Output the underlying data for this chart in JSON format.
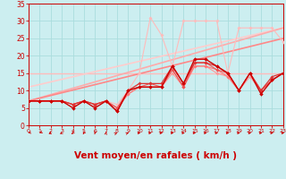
{
  "xlabel": "Vent moyen/en rafales ( km/h )",
  "xlim": [
    0,
    23
  ],
  "ylim": [
    0,
    35
  ],
  "yticks": [
    0,
    5,
    10,
    15,
    20,
    25,
    30,
    35
  ],
  "xticks": [
    0,
    1,
    2,
    3,
    4,
    5,
    6,
    7,
    8,
    9,
    10,
    11,
    12,
    13,
    14,
    15,
    16,
    17,
    18,
    19,
    20,
    21,
    22,
    23
  ],
  "bg_color": "#cceef0",
  "grid_color": "#aadddd",
  "series": [
    {
      "x": [
        0,
        23
      ],
      "y": [
        15,
        15
      ],
      "color": "#ffbbbb",
      "lw": 1.0,
      "marker": null,
      "ms": 0,
      "zorder": 2
    },
    {
      "x": [
        0,
        23
      ],
      "y": [
        11,
        28
      ],
      "color": "#ffcccc",
      "lw": 1.2,
      "marker": null,
      "ms": 0,
      "zorder": 2
    },
    {
      "x": [
        0,
        23
      ],
      "y": [
        7,
        28
      ],
      "color": "#ffaaaa",
      "lw": 1.2,
      "marker": null,
      "ms": 0,
      "zorder": 2
    },
    {
      "x": [
        0,
        23
      ],
      "y": [
        7,
        25
      ],
      "color": "#ff8888",
      "lw": 1.2,
      "marker": null,
      "ms": 0,
      "zorder": 2
    },
    {
      "x": [
        0,
        1,
        2,
        3,
        4,
        5,
        6,
        7,
        8,
        9,
        10,
        11,
        12,
        13,
        14,
        15,
        16,
        17,
        18,
        19,
        20,
        21,
        22,
        23
      ],
      "y": [
        7,
        7,
        7,
        7,
        6,
        7,
        6,
        7,
        6,
        10,
        15,
        31,
        26,
        17,
        30,
        30,
        30,
        30,
        15,
        28,
        28,
        28,
        28,
        24
      ],
      "color": "#ffbbbb",
      "lw": 0.8,
      "marker": "D",
      "ms": 1.8,
      "zorder": 3
    },
    {
      "x": [
        0,
        1,
        2,
        3,
        4,
        5,
        6,
        7,
        8,
        9,
        10,
        11,
        12,
        13,
        14,
        15,
        16,
        17,
        18,
        19,
        20,
        21,
        22,
        23
      ],
      "y": [
        7,
        7,
        7,
        7,
        6,
        7,
        6,
        7,
        5,
        9,
        11,
        11,
        11,
        15,
        11,
        17,
        17,
        15,
        14,
        10,
        14,
        10,
        13,
        15
      ],
      "color": "#ff9999",
      "lw": 0.8,
      "marker": "D",
      "ms": 1.8,
      "zorder": 3
    },
    {
      "x": [
        0,
        1,
        2,
        3,
        4,
        5,
        6,
        7,
        8,
        9,
        10,
        11,
        12,
        13,
        14,
        15,
        16,
        17,
        18,
        19,
        20,
        21,
        22,
        23
      ],
      "y": [
        7,
        7,
        7,
        7,
        6,
        7,
        6,
        7,
        5,
        9,
        11,
        11,
        11,
        16,
        11,
        17,
        17,
        16,
        14,
        10,
        15,
        10,
        13,
        15
      ],
      "color": "#ff7777",
      "lw": 0.8,
      "marker": "D",
      "ms": 1.8,
      "zorder": 3
    },
    {
      "x": [
        0,
        1,
        2,
        3,
        4,
        5,
        6,
        7,
        8,
        9,
        10,
        11,
        12,
        13,
        14,
        15,
        16,
        17,
        18,
        19,
        20,
        21,
        22,
        23
      ],
      "y": [
        7,
        7,
        7,
        7,
        6,
        7,
        6,
        7,
        5,
        10,
        11,
        12,
        11,
        16,
        11,
        18,
        18,
        16,
        15,
        10,
        15,
        10,
        13,
        15
      ],
      "color": "#ee5555",
      "lw": 0.8,
      "marker": "D",
      "ms": 1.8,
      "zorder": 3
    },
    {
      "x": [
        0,
        1,
        2,
        3,
        4,
        5,
        6,
        7,
        8,
        9,
        10,
        11,
        12,
        13,
        14,
        15,
        16,
        17,
        18,
        19,
        20,
        21,
        22,
        23
      ],
      "y": [
        7,
        7,
        7,
        7,
        6,
        7,
        6,
        7,
        4,
        10,
        12,
        12,
        12,
        17,
        12,
        18,
        18,
        17,
        15,
        10,
        15,
        10,
        14,
        15
      ],
      "color": "#dd3333",
      "lw": 0.9,
      "marker": "D",
      "ms": 1.8,
      "zorder": 3
    },
    {
      "x": [
        0,
        1,
        2,
        3,
        4,
        5,
        6,
        7,
        8,
        9,
        10,
        11,
        12,
        13,
        14,
        15,
        16,
        17,
        18,
        19,
        20,
        21,
        22,
        23
      ],
      "y": [
        7,
        7,
        7,
        7,
        5,
        7,
        5,
        7,
        4,
        10,
        11,
        11,
        11,
        17,
        12,
        19,
        19,
        17,
        15,
        10,
        15,
        9,
        13,
        15
      ],
      "color": "#cc0000",
      "lw": 1.0,
      "marker": "D",
      "ms": 2.0,
      "zorder": 4
    }
  ],
  "arrow_angles": [
    230,
    220,
    215,
    210,
    200,
    195,
    185,
    5,
    40,
    50,
    85,
    88,
    90,
    90,
    90,
    90,
    90,
    90,
    90,
    90,
    90,
    90,
    90,
    90
  ],
  "arrow_color": "#cc0000",
  "tick_label_color": "#cc0000",
  "axis_label_color": "#cc0000",
  "tick_fontsize": 5.5,
  "xlabel_fontsize": 7.5
}
